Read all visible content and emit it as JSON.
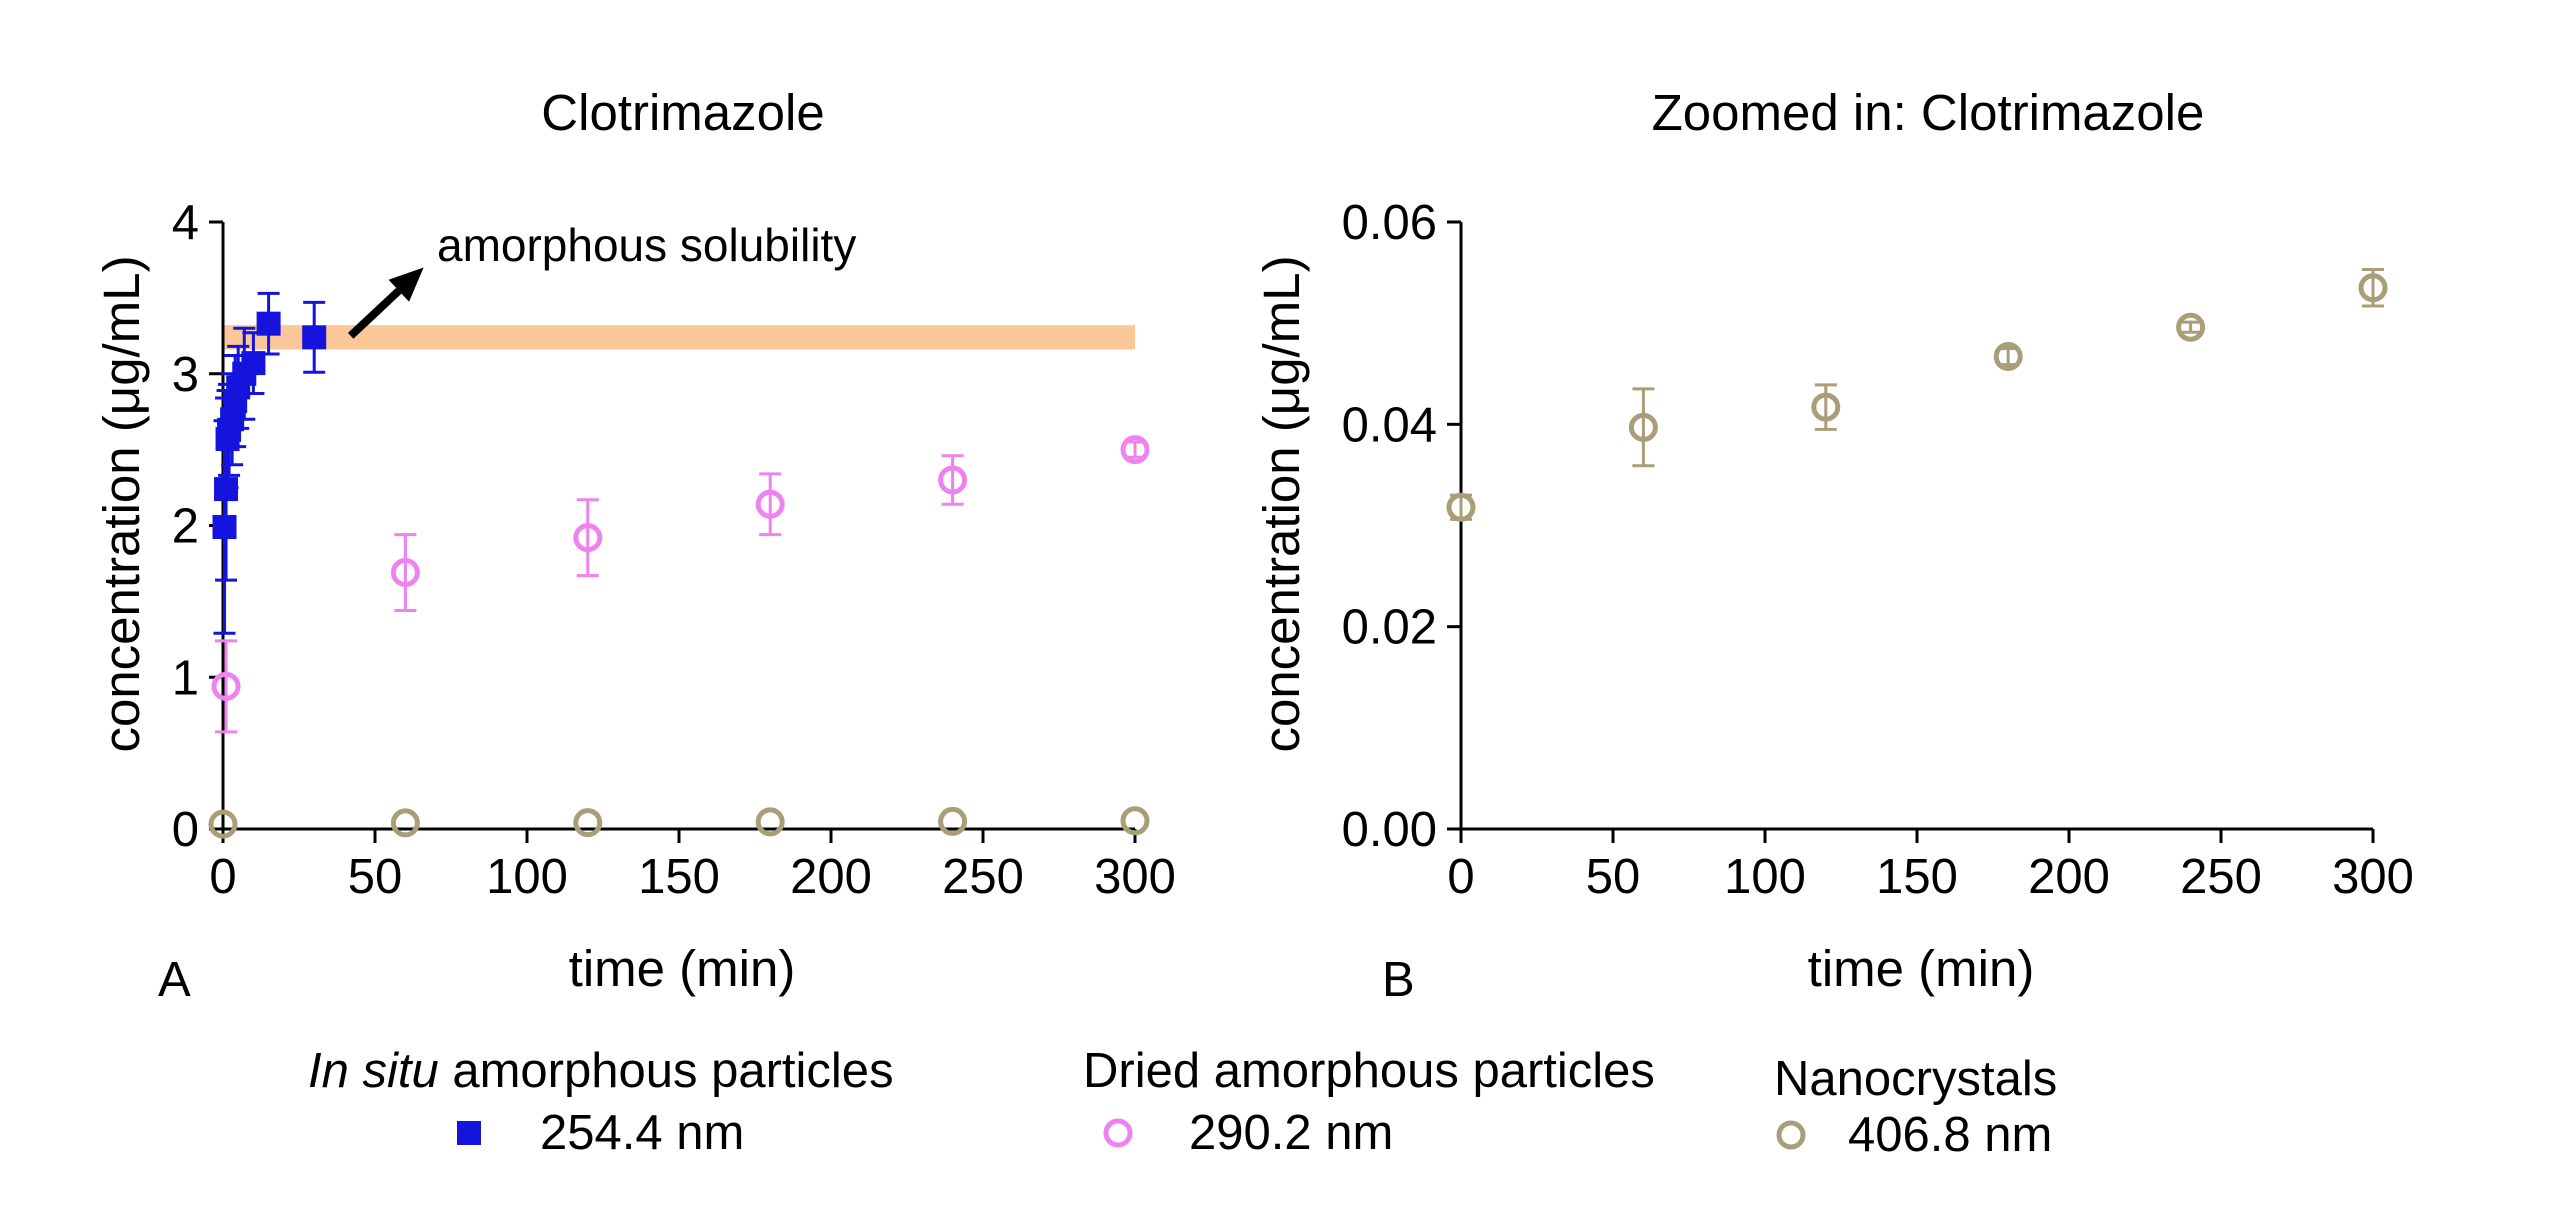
{
  "chart_data": [
    {
      "type": "scatter",
      "panel": "A",
      "title": "Clotrimazole",
      "xlabel": "time (min)",
      "ylabel": "concentration (μg/mL)",
      "xlim": [
        0,
        300
      ],
      "ylim": [
        0,
        4
      ],
      "xticks": [
        0,
        50,
        100,
        150,
        200,
        250,
        300
      ],
      "yticks": [
        0,
        1,
        2,
        3,
        4
      ],
      "grid": false,
      "band": {
        "y_low": 3.16,
        "y_high": 3.32,
        "x_start": 0,
        "x_end": 300,
        "color": "#fac898"
      },
      "annotation": {
        "text": "amorphous solubility",
        "arrow_from": [
          42,
          3.25
        ],
        "arrow_to": [
          66,
          3.7
        ]
      },
      "series": [
        {
          "name": "In situ amorphous particles",
          "marker": "filled-square",
          "color": "#1414dc",
          "points": [
            {
              "x": 0.5,
              "y": 1.99,
              "err": 0.7
            },
            {
              "x": 1,
              "y": 2.24,
              "err": 0.6
            },
            {
              "x": 1.5,
              "y": 2.57,
              "err": 0.32
            },
            {
              "x": 2,
              "y": 2.63,
              "err": 0.3
            },
            {
              "x": 3,
              "y": 2.7,
              "err": 0.3
            },
            {
              "x": 4,
              "y": 2.82,
              "err": 0.3
            },
            {
              "x": 5,
              "y": 2.91,
              "err": 0.27
            },
            {
              "x": 7,
              "y": 3.0,
              "err": 0.3
            },
            {
              "x": 10,
              "y": 3.07,
              "err": 0.2
            },
            {
              "x": 15,
              "y": 3.33,
              "err": 0.2
            },
            {
              "x": 30,
              "y": 3.24,
              "err": 0.23
            }
          ]
        },
        {
          "name": "Dried amorphous particles",
          "marker": "open-circle",
          "color": "#ee82ee",
          "points": [
            {
              "x": 1,
              "y": 0.94,
              "err": 0.3
            },
            {
              "x": 60,
              "y": 1.69,
              "err": 0.25
            },
            {
              "x": 120,
              "y": 1.92,
              "err": 0.25
            },
            {
              "x": 180,
              "y": 2.14,
              "err": 0.2
            },
            {
              "x": 240,
              "y": 2.3,
              "err": 0.16
            },
            {
              "x": 300,
              "y": 2.5,
              "err": 0.05
            }
          ]
        },
        {
          "name": "Nanocrystals",
          "marker": "open-circle",
          "color": "#a99e78",
          "points": [
            {
              "x": 0,
              "y": 0.032,
              "err": 0.0
            },
            {
              "x": 60,
              "y": 0.04,
              "err": 0.0
            },
            {
              "x": 120,
              "y": 0.042,
              "err": 0.0
            },
            {
              "x": 180,
              "y": 0.047,
              "err": 0.0
            },
            {
              "x": 240,
              "y": 0.05,
              "err": 0.0
            },
            {
              "x": 300,
              "y": 0.054,
              "err": 0.0
            }
          ]
        }
      ]
    },
    {
      "type": "scatter",
      "panel": "B",
      "title": "Zoomed in: Clotrimazole",
      "xlabel": "time (min)",
      "ylabel": "concentration (μg/mL)",
      "xlim": [
        0,
        300
      ],
      "ylim": [
        0,
        0.06
      ],
      "xticks": [
        0,
        50,
        100,
        150,
        200,
        250,
        300
      ],
      "yticks": [
        "0.00",
        "0.02",
        "0.04",
        "0.06"
      ],
      "grid": false,
      "series": [
        {
          "name": "Nanocrystals",
          "marker": "open-circle",
          "color": "#a99e78",
          "points": [
            {
              "x": 0,
              "y": 0.0318,
              "err": 0.0012
            },
            {
              "x": 60,
              "y": 0.0397,
              "err": 0.0038
            },
            {
              "x": 120,
              "y": 0.0417,
              "err": 0.0022
            },
            {
              "x": 180,
              "y": 0.0467,
              "err": 0.0008
            },
            {
              "x": 240,
              "y": 0.0496,
              "err": 0.0005
            },
            {
              "x": 300,
              "y": 0.0535,
              "err": 0.0018
            }
          ]
        }
      ]
    }
  ],
  "legend": [
    {
      "title_italic": "In situ",
      "title_rest": " amorphous particles",
      "value": "254.4 nm",
      "marker": "filled-square",
      "color": "#1414dc"
    },
    {
      "title_italic": "",
      "title_rest": "Dried amorphous particles",
      "value": "290.2 nm",
      "marker": "open-circle",
      "color": "#ee82ee"
    },
    {
      "title_italic": "",
      "title_rest": "Nanocrystals",
      "value": "406.8 nm",
      "marker": "open-circle",
      "color": "#a99e78"
    }
  ]
}
